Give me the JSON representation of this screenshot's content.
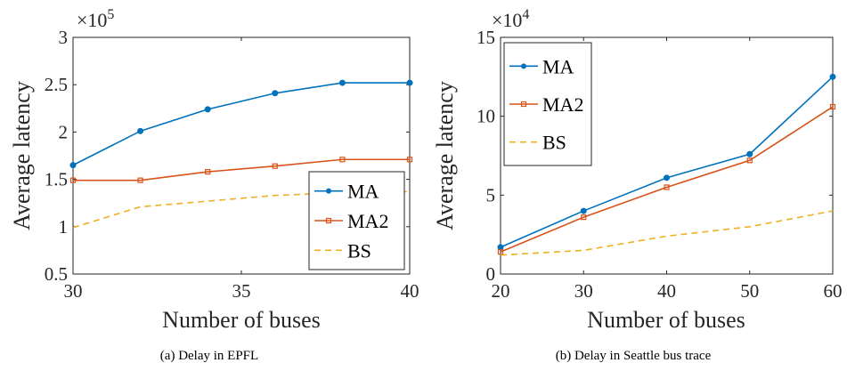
{
  "chart_data": [
    {
      "type": "line",
      "caption": "(a)  Delay in EPFL",
      "xlabel": "Number of buses",
      "ylabel": "Average latency",
      "exponent_base": "×10",
      "exponent_power": "5",
      "xlim": [
        30,
        40
      ],
      "ylim": [
        0.5,
        3
      ],
      "xticks": [
        30,
        35,
        40
      ],
      "xtick_labels": [
        "30",
        "35",
        "40"
      ],
      "yticks": [
        0.5,
        1,
        1.5,
        2,
        2.5,
        3
      ],
      "ytick_labels": [
        "0.5",
        "1",
        "1.5",
        "2",
        "2.5",
        "3"
      ],
      "x": [
        30,
        32,
        34,
        36,
        38,
        40
      ],
      "series": [
        {
          "name": "MA",
          "color": "#0072BD",
          "style": "solid",
          "marker": "circle",
          "values": [
            1.65,
            2.01,
            2.24,
            2.41,
            2.52,
            2.52
          ]
        },
        {
          "name": "MA2",
          "color": "#D95319",
          "style": "solid",
          "marker": "square",
          "values": [
            1.49,
            1.49,
            1.58,
            1.64,
            1.71,
            1.71
          ]
        },
        {
          "name": "BS",
          "color": "#EDB120",
          "style": "dashed",
          "marker": "none",
          "values": [
            0.99,
            1.21,
            1.27,
            1.33,
            1.36,
            1.37
          ]
        }
      ],
      "legend_position": "bottom-right",
      "grid": false
    },
    {
      "type": "line",
      "caption": "(b)  Delay in Seattle bus trace",
      "xlabel": "Number of buses",
      "ylabel": "Average latency",
      "exponent_base": "×10",
      "exponent_power": "4",
      "xlim": [
        20,
        60
      ],
      "ylim": [
        0,
        15
      ],
      "xticks": [
        20,
        30,
        40,
        50,
        60
      ],
      "xtick_labels": [
        "20",
        "30",
        "40",
        "50",
        "60"
      ],
      "yticks": [
        0,
        5,
        10,
        15
      ],
      "ytick_labels": [
        "0",
        "5",
        "10",
        "15"
      ],
      "x": [
        20,
        30,
        40,
        50,
        60
      ],
      "series": [
        {
          "name": "MA",
          "color": "#0072BD",
          "style": "solid",
          "marker": "circle",
          "values": [
            1.7,
            4.0,
            6.1,
            7.6,
            12.5
          ]
        },
        {
          "name": "MA2",
          "color": "#D95319",
          "style": "solid",
          "marker": "square",
          "values": [
            1.4,
            3.6,
            5.5,
            7.2,
            10.6
          ]
        },
        {
          "name": "BS",
          "color": "#EDB120",
          "style": "dashed",
          "marker": "none",
          "values": [
            1.2,
            1.5,
            2.4,
            3.0,
            4.0
          ]
        }
      ],
      "legend_position": "top-left",
      "grid": false
    }
  ]
}
